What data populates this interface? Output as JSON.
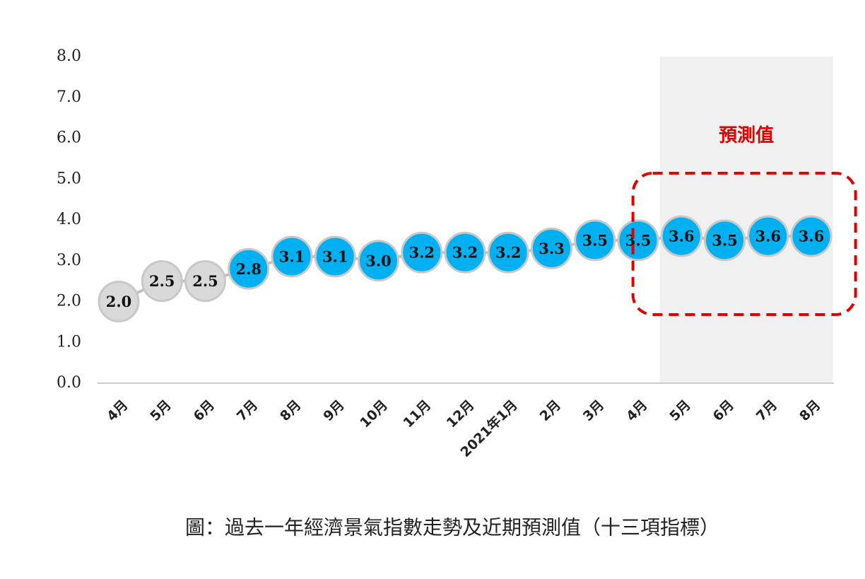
{
  "chart_data": {
    "type": "line",
    "caption": "圖：過去一年經濟景氣指數走勢及近期預測值（十三項指標）",
    "categories": [
      "4月",
      "5月",
      "6月",
      "7月",
      "8月",
      "9月",
      "10月",
      "11月",
      "12月",
      "2021年1月",
      "2月",
      "3月",
      "4月",
      "5月",
      "6月",
      "7月",
      "8月"
    ],
    "series": [
      {
        "color": "#bfbfbf",
        "point_colors": [
          "#d9d9d9",
          "#d9d9d9",
          "#d9d9d9",
          "#00b0f0",
          "#00b0f0",
          "#00b0f0",
          "#00b0f0",
          "#00b0f0",
          "#00b0f0",
          "#00b0f0",
          "#00b0f0",
          "#00b0f0",
          "#00b0f0",
          "#00b0f0",
          "#00b0f0",
          "#00b0f0",
          "#00b0f0"
        ],
        "values": [
          2.0,
          2.5,
          2.5,
          2.8,
          3.1,
          3.1,
          3.0,
          3.2,
          3.2,
          3.2,
          3.3,
          3.5,
          3.5,
          3.6,
          3.5,
          3.6,
          3.6
        ],
        "value_labels": [
          "2.0",
          "2.5",
          "2.5",
          "2.8",
          "3.1",
          "3.1",
          "3.0",
          "3.2",
          "3.2",
          "3.2",
          "3.3",
          "3.5",
          "3.5",
          "3.6",
          "3.5",
          "3.6",
          "3.6"
        ]
      }
    ],
    "ylim": [
      0,
      8
    ],
    "yticks": [
      {
        "value": 0,
        "label": "0.0"
      },
      {
        "value": 1,
        "label": "1.0"
      },
      {
        "value": 2,
        "label": "2.0"
      },
      {
        "value": 3,
        "label": "3.0"
      },
      {
        "value": 4,
        "label": "4.0"
      },
      {
        "value": 5,
        "label": "5.0"
      },
      {
        "value": 6,
        "label": "6.0"
      },
      {
        "value": 7,
        "label": "7.0"
      },
      {
        "value": 8,
        "label": "8.0"
      }
    ],
    "highlight": {
      "label": "預測值",
      "from": 13,
      "to": 16,
      "color": "#e00000"
    }
  }
}
